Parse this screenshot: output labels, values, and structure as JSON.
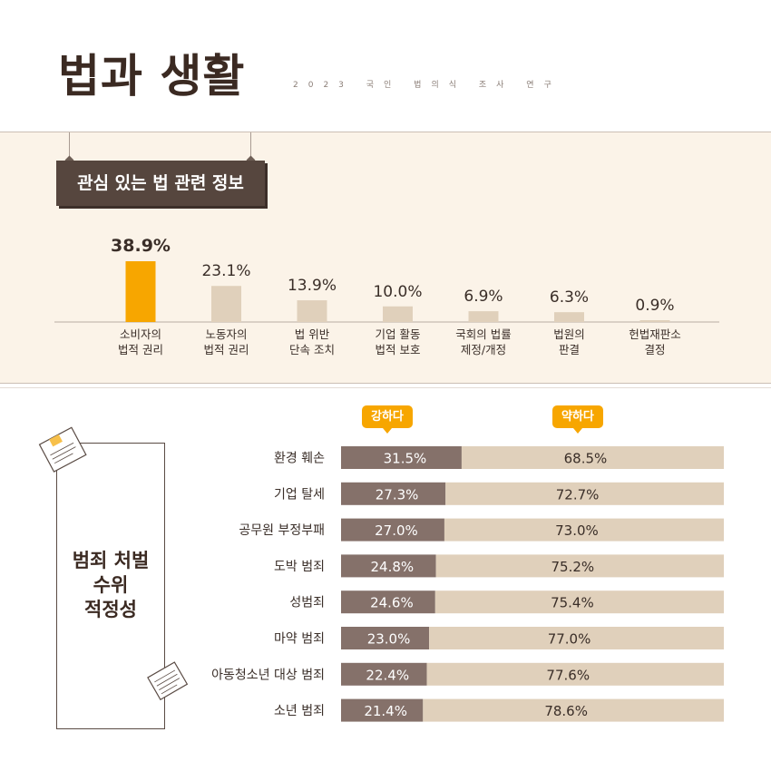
{
  "header": {
    "title": "법과 생활",
    "subtitle": "2023 국인 법의식 조사 연구"
  },
  "section1": {
    "title": "관심 있는 법 관련 정보"
  },
  "section2": {
    "title_lines": [
      "범죄 처벌",
      "수위",
      "적정성"
    ],
    "legend": {
      "strong": "강하다",
      "weak": "약하다"
    }
  },
  "colors": {
    "highlight": "#f7a600",
    "bar_light": "#e0d0bb",
    "bar_dark": "#85716a",
    "text": "#3a2e28"
  },
  "chart_data": [
    {
      "type": "bar",
      "categories": [
        "소비자의\n법적 권리",
        "노동자의\n법적 권리",
        "법 위반\n단속 조치",
        "기업 활동\n법적 보호",
        "국회의 법률\n제정/개정",
        "법원의\n판결",
        "헌법재판소\n결정"
      ],
      "values": [
        38.9,
        23.1,
        13.9,
        10.0,
        6.9,
        6.3,
        0.9
      ],
      "value_labels": [
        "38.9%",
        "23.1%",
        "13.9%",
        "10.0%",
        "6.9%",
        "6.3%",
        "0.9%"
      ],
      "highlight_index": 0,
      "unit": "%"
    },
    {
      "type": "bar",
      "orientation": "horizontal",
      "stacked": true,
      "categories": [
        "환경 훼손",
        "기업 탈세",
        "공무원 부정부패",
        "도박 범죄",
        "성범죄",
        "마약 범죄",
        "아동청소년 대상 범죄",
        "소년 범죄"
      ],
      "series": [
        {
          "name": "강하다",
          "values": [
            31.5,
            27.3,
            27.0,
            24.8,
            24.6,
            23.0,
            22.4,
            21.4
          ],
          "labels": [
            "31.5%",
            "27.3%",
            "27.0%",
            "24.8%",
            "24.6%",
            "23.0%",
            "22.4%",
            "21.4%"
          ]
        },
        {
          "name": "약하다",
          "values": [
            68.5,
            72.7,
            73.0,
            75.2,
            75.4,
            77.0,
            77.6,
            78.6
          ],
          "labels": [
            "68.5%",
            "72.7%",
            "73.0%",
            "75.2%",
            "75.4%",
            "77.0%",
            "77.6%",
            "78.6%"
          ]
        }
      ],
      "xlim": [
        0,
        100
      ]
    }
  ]
}
